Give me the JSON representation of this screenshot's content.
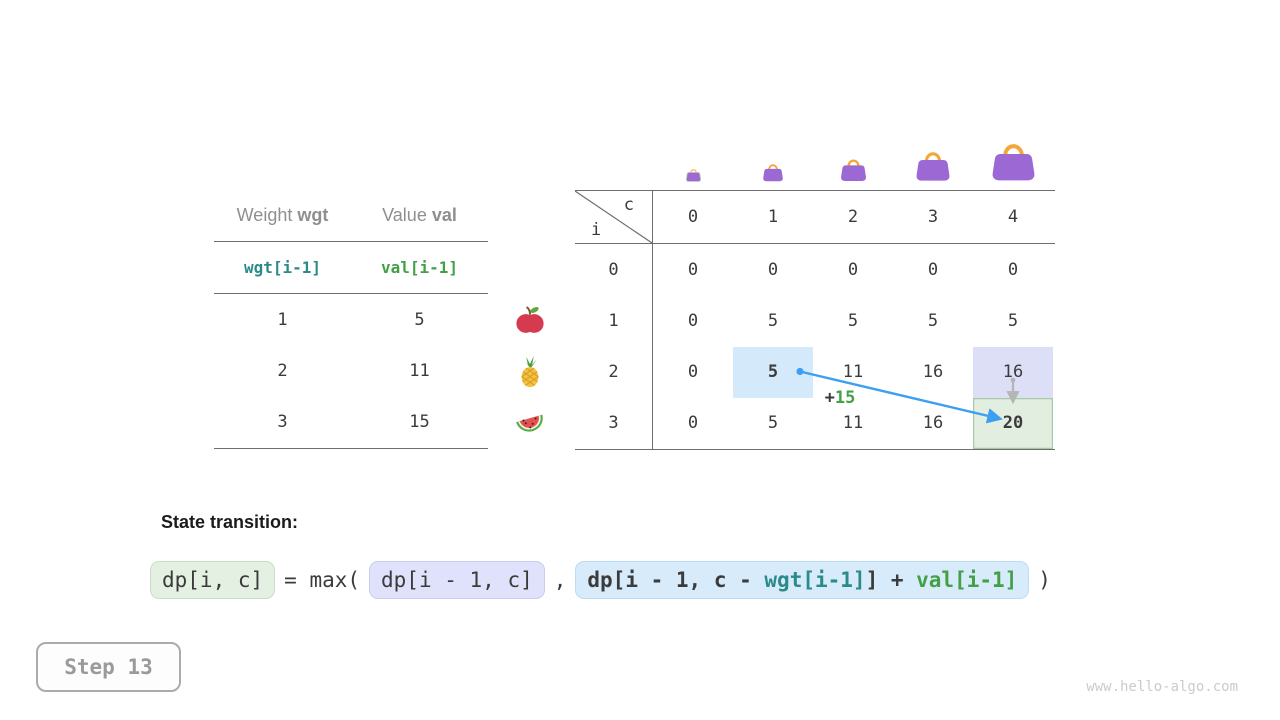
{
  "colors": {
    "ink": "#3b3b3b",
    "gray_text": "#8f8f8f",
    "line": "#6e6e6e",
    "teal": "#2b8a8a",
    "green": "#43a047",
    "arrow_blue": "#3d9ef2",
    "arrow_gray": "#b5b5b5",
    "bag_purple": "#9c68d4",
    "bag_handle": "#f2a93b",
    "highlight_blue": "#d4e9fa",
    "highlight_lavender": "#dcdff6",
    "highlight_green_bg": "#e1eee0",
    "highlight_green_border": "#a6c9a6",
    "pill_green_bg": "#e3f0e2",
    "pill_green_border": "#c7dfc5",
    "pill_lavender_bg": "#dfe2fa",
    "pill_lavender_border": "#c9cdf1",
    "pill_blue_bg": "#d7ebfb",
    "pill_blue_border": "#badcf4"
  },
  "items_table": {
    "weight_label": "Weight",
    "weight_var": "wgt",
    "value_label": "Value",
    "value_var": "val",
    "index_row": {
      "weight": "wgt[i-1]",
      "value": "val[i-1]"
    },
    "rows": [
      {
        "weight": "1",
        "value": "5",
        "fruit": "apple"
      },
      {
        "weight": "2",
        "value": "11",
        "fruit": "pineapple"
      },
      {
        "weight": "3",
        "value": "15",
        "fruit": "watermelon"
      }
    ]
  },
  "dp_table": {
    "corner": {
      "col_var": "c",
      "row_var": "i"
    },
    "col_headers": [
      "0",
      "1",
      "2",
      "3",
      "4"
    ],
    "row_headers": [
      "0",
      "1",
      "2",
      "3"
    ],
    "values": [
      [
        "0",
        "0",
        "0",
        "0",
        "0"
      ],
      [
        "0",
        "5",
        "5",
        "5",
        "5"
      ],
      [
        "0",
        "5",
        "11",
        "16",
        "16"
      ],
      [
        "0",
        "5",
        "11",
        "16",
        "20"
      ]
    ],
    "highlights": [
      {
        "row": 2,
        "col": 1,
        "style": "blue",
        "bold": true,
        "role": "source-cell"
      },
      {
        "row": 2,
        "col": 4,
        "style": "lavender",
        "bold": false,
        "role": "cell-above"
      },
      {
        "row": 3,
        "col": 4,
        "style": "green",
        "bold": true,
        "role": "target-cell"
      }
    ],
    "bags": [
      {
        "icon": "empty-bag",
        "ghost": true
      },
      {
        "icon": "bag-capacity-1",
        "ghost": false
      },
      {
        "icon": "bag-capacity-2",
        "ghost": false
      },
      {
        "icon": "bag-capacity-3",
        "ghost": false
      },
      {
        "icon": "bag-capacity-4",
        "ghost": false
      }
    ]
  },
  "annotation": {
    "plus": "+",
    "value": "15"
  },
  "formula": {
    "heading": "State transition:",
    "lhs": "dp[i, c]",
    "equals": "= max(",
    "arg1": "dp[i - 1, c]",
    "comma": ",",
    "arg2_prefix": "dp[i - 1, c - ",
    "arg2_wgt": "wgt[i-1]",
    "arg2_mid": "] + ",
    "arg2_val": "val[i-1]",
    "close": ")"
  },
  "step_label": "Step 13",
  "watermark": "www.hello-algo.com"
}
